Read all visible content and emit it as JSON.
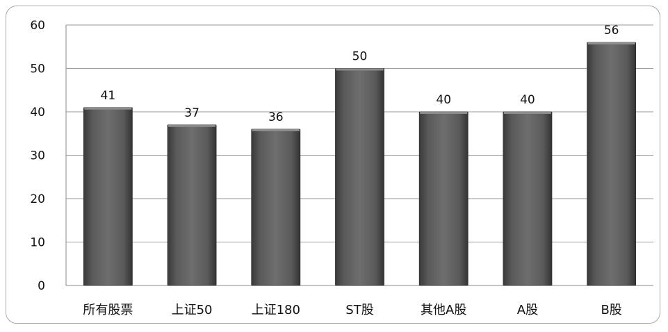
{
  "chart_data": {
    "type": "bar",
    "categories": [
      "所有股票",
      "上证50",
      "上证180",
      "ST股",
      "其他A股",
      "A股",
      "B股"
    ],
    "values": [
      41,
      37,
      36,
      50,
      40,
      40,
      56
    ],
    "data_labels": [
      "41",
      "37",
      "36",
      "50",
      "40",
      "40",
      "56"
    ],
    "ylim": [
      0,
      60
    ],
    "yticks": [
      0,
      10,
      20,
      30,
      40,
      50,
      60
    ],
    "grid": true,
    "bar_color": "#5e5e5e"
  }
}
